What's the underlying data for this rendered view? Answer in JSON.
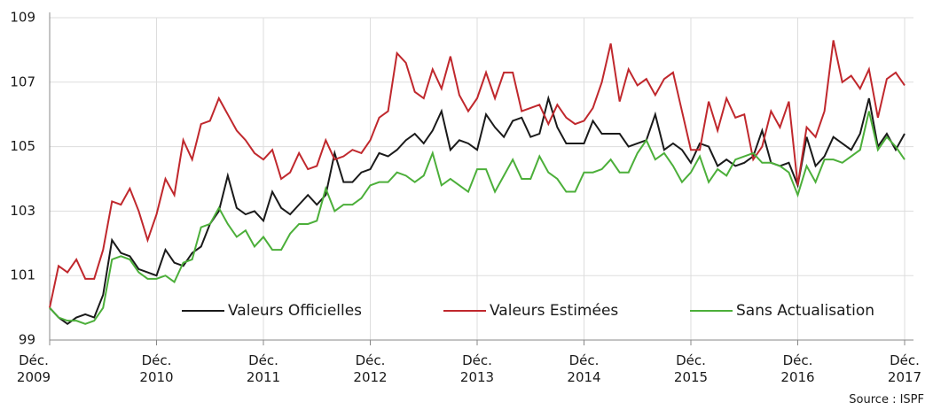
{
  "chart_data": {
    "type": "line",
    "categories": [
      "Déc.\n2009",
      null,
      null,
      null,
      null,
      null,
      null,
      null,
      null,
      null,
      null,
      null,
      "Déc.\n2010",
      null,
      null,
      null,
      null,
      null,
      null,
      null,
      null,
      null,
      null,
      null,
      "Déc.\n2011",
      null,
      null,
      null,
      null,
      null,
      null,
      null,
      null,
      null,
      null,
      null,
      "Déc.\n2012",
      null,
      null,
      null,
      null,
      null,
      null,
      null,
      null,
      null,
      null,
      null,
      "Déc.\n2013",
      null,
      null,
      null,
      null,
      null,
      null,
      null,
      null,
      null,
      null,
      null,
      "Déc.\n2014",
      null,
      null,
      null,
      null,
      null,
      null,
      null,
      null,
      null,
      null,
      null,
      "Déc.\n2015",
      null,
      null,
      null,
      null,
      null,
      null,
      null,
      null,
      null,
      null,
      null,
      "Déc.\n2016",
      null,
      null,
      null,
      null,
      null,
      null,
      null,
      null,
      null,
      null,
      null,
      "Déc.\n2017"
    ],
    "series": [
      {
        "name": "Valeurs Officielles",
        "color": "#1a1a1a",
        "values": [
          100.0,
          99.7,
          99.5,
          99.7,
          99.8,
          99.7,
          100.4,
          102.1,
          101.7,
          101.6,
          101.2,
          101.1,
          101.0,
          101.8,
          101.4,
          101.3,
          101.7,
          101.9,
          102.6,
          103.0,
          104.1,
          103.1,
          102.9,
          103.0,
          102.7,
          103.6,
          103.1,
          102.9,
          103.2,
          103.5,
          103.2,
          103.5,
          104.8,
          103.9,
          103.9,
          104.2,
          104.3,
          104.8,
          104.7,
          104.9,
          105.2,
          105.4,
          105.1,
          105.5,
          106.1,
          104.9,
          105.2,
          105.1,
          104.9,
          106.0,
          105.6,
          105.3,
          105.8,
          105.9,
          105.3,
          105.4,
          106.5,
          105.6,
          105.1,
          105.1,
          105.1,
          105.8,
          105.4,
          105.4,
          105.4,
          105.0,
          105.1,
          105.2,
          106.0,
          104.9,
          105.1,
          104.9,
          104.5,
          105.1,
          105.0,
          104.4,
          104.6,
          104.4,
          104.5,
          104.7,
          105.5,
          104.5,
          104.4,
          104.5,
          103.8,
          105.3,
          104.4,
          104.7,
          105.3,
          105.1,
          104.9,
          105.4,
          106.5,
          105.0,
          105.4,
          104.9,
          105.4
        ]
      },
      {
        "name": "Valeurs Estimées",
        "color": "#c0282d",
        "values": [
          100.0,
          101.3,
          101.1,
          101.5,
          100.9,
          100.9,
          101.8,
          103.3,
          103.2,
          103.7,
          103.0,
          102.1,
          102.9,
          104.0,
          103.5,
          105.2,
          104.6,
          105.7,
          105.8,
          106.5,
          106.0,
          105.5,
          105.2,
          104.8,
          104.6,
          104.9,
          104.0,
          104.2,
          104.8,
          104.3,
          104.4,
          105.2,
          104.6,
          104.7,
          104.9,
          104.8,
          105.2,
          105.9,
          106.1,
          107.9,
          107.6,
          106.7,
          106.5,
          107.4,
          106.8,
          107.8,
          106.6,
          106.1,
          106.5,
          107.3,
          106.5,
          107.3,
          107.3,
          106.1,
          106.2,
          106.3,
          105.7,
          106.3,
          105.9,
          105.7,
          105.8,
          106.2,
          107.0,
          108.2,
          106.4,
          107.4,
          106.9,
          107.1,
          106.6,
          107.1,
          107.3,
          106.1,
          104.9,
          104.9,
          106.4,
          105.5,
          106.5,
          105.9,
          106.0,
          104.6,
          105.0,
          106.1,
          105.6,
          106.4,
          103.8,
          105.6,
          105.3,
          106.1,
          108.3,
          107.0,
          107.2,
          106.8,
          107.4,
          105.9,
          107.1,
          107.3,
          106.9
        ]
      },
      {
        "name": "Sans Actualisation",
        "color": "#4caf3a",
        "values": [
          100.0,
          99.7,
          99.6,
          99.6,
          99.5,
          99.6,
          100.0,
          101.5,
          101.6,
          101.5,
          101.1,
          100.9,
          100.9,
          101.0,
          100.8,
          101.4,
          101.5,
          102.5,
          102.6,
          103.1,
          102.6,
          102.2,
          102.4,
          101.9,
          102.2,
          101.8,
          101.8,
          102.3,
          102.6,
          102.6,
          102.7,
          103.7,
          103.0,
          103.2,
          103.2,
          103.4,
          103.8,
          103.9,
          103.9,
          104.2,
          104.1,
          103.9,
          104.1,
          104.8,
          103.8,
          104.0,
          103.8,
          103.6,
          104.3,
          104.3,
          103.6,
          104.1,
          104.6,
          104.0,
          104.0,
          104.7,
          104.2,
          104.0,
          103.6,
          103.6,
          104.2,
          104.2,
          104.3,
          104.6,
          104.2,
          104.2,
          104.8,
          105.2,
          104.6,
          104.8,
          104.4,
          103.9,
          104.2,
          104.7,
          103.9,
          104.3,
          104.1,
          104.6,
          104.7,
          104.8,
          104.5,
          104.5,
          104.4,
          104.2,
          103.5,
          104.4,
          103.9,
          104.6,
          104.6,
          104.5,
          104.7,
          104.9,
          106.1,
          104.9,
          105.3,
          105.0,
          104.6
        ]
      }
    ],
    "ylim": [
      99,
      109
    ],
    "yticks": [
      99,
      101,
      103,
      105,
      107,
      109
    ],
    "grid": true,
    "legend": "bottom",
    "source": "Source : ISPF"
  }
}
